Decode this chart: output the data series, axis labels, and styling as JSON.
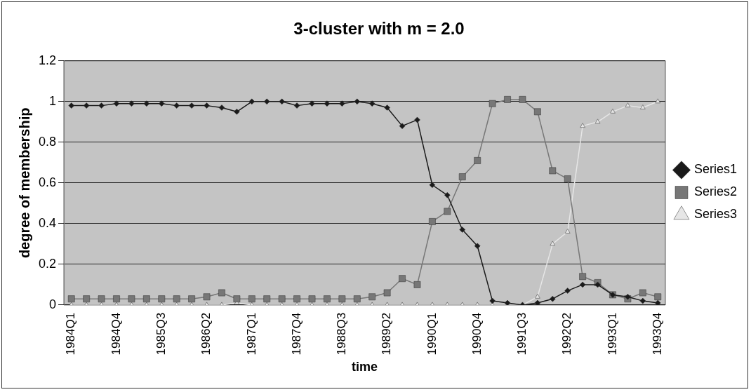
{
  "chart_data": {
    "type": "line",
    "title": "3-cluster with m = 2.0",
    "xlabel": "time",
    "ylabel": "degree of membership",
    "categories": [
      "1984Q1",
      null,
      null,
      "1984Q4",
      null,
      null,
      "1985Q3",
      null,
      null,
      "1986Q2",
      null,
      null,
      "1987Q1",
      null,
      null,
      "1987Q4",
      null,
      null,
      "1988Q3",
      null,
      null,
      "1989Q2",
      null,
      null,
      "1990Q1",
      null,
      null,
      "1990Q4",
      null,
      null,
      "1991Q3",
      null,
      null,
      "1992Q2",
      null,
      null,
      "1993Q1",
      null,
      null,
      "1993Q4"
    ],
    "series": [
      {
        "name": "Series1",
        "color": "#1a1a1a",
        "marker": "diamond",
        "values": [
          0.98,
          0.98,
          0.98,
          0.99,
          0.99,
          0.99,
          0.99,
          0.98,
          0.98,
          0.98,
          0.97,
          0.95,
          1.0,
          1.0,
          1.0,
          0.98,
          0.99,
          0.99,
          0.99,
          1.0,
          0.99,
          0.97,
          0.88,
          0.91,
          0.59,
          0.54,
          0.37,
          0.29,
          0.02,
          0.01,
          0.0,
          0.01,
          0.03,
          0.07,
          0.1,
          0.1,
          0.05,
          0.04,
          0.02,
          0.01
        ]
      },
      {
        "name": "Series2",
        "color": "#777777",
        "marker": "square",
        "values": [
          0.03,
          0.03,
          0.03,
          0.03,
          0.03,
          0.03,
          0.03,
          0.03,
          0.03,
          0.04,
          0.06,
          0.03,
          0.03,
          0.03,
          0.03,
          0.03,
          0.03,
          0.03,
          0.03,
          0.03,
          0.04,
          0.06,
          0.13,
          0.1,
          0.41,
          0.46,
          0.63,
          0.71,
          0.99,
          1.01,
          1.01,
          0.95,
          0.66,
          0.62,
          0.14,
          0.11,
          0.05,
          0.03,
          0.06,
          0.04
        ]
      },
      {
        "name": "Series3",
        "color": "#e6e6e6",
        "marker": "triangle",
        "values": [
          0.0,
          0.0,
          0.0,
          0.0,
          0.0,
          0.0,
          0.0,
          0.0,
          0.0,
          0.0,
          0.0,
          0.01,
          0.0,
          0.0,
          0.0,
          0.0,
          0.0,
          0.0,
          0.0,
          0.0,
          0.0,
          0.0,
          0.0,
          0.0,
          0.0,
          0.0,
          0.0,
          0.0,
          0.0,
          0.0,
          0.0,
          0.04,
          0.3,
          0.36,
          0.88,
          0.9,
          0.95,
          0.98,
          0.97,
          1.0
        ]
      }
    ],
    "ylim": [
      0,
      1.2
    ],
    "yticks": [
      0,
      0.2,
      0.4,
      0.6,
      0.8,
      1,
      1.2
    ],
    "grid": "y",
    "legend": "right",
    "line_style": "solid"
  }
}
